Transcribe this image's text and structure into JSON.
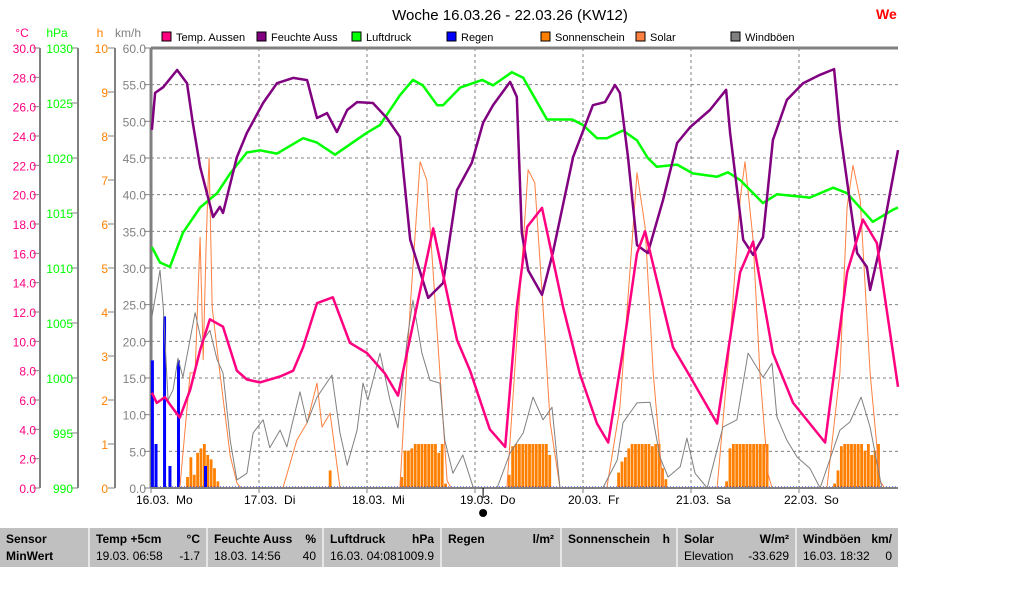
{
  "title": "Woche 16.03.26 - 22.03.26 (KW12)",
  "corner_label": "We",
  "colors": {
    "temp": "#ff0080",
    "humidity": "#800080",
    "pressure": "#00ff00",
    "rain": "#0000ff",
    "sunshine": "#ff8000",
    "solar": "#ff8040",
    "wind": "#808080",
    "grid": "#808080"
  },
  "chart_data": {
    "type": "line",
    "title": "Woche 16.03.26 - 22.03.26 (KW12)",
    "x_unit": "hours since 16.03. 00:00",
    "xlim": [
      0,
      166
    ],
    "grid": true,
    "legend_placement": "top",
    "x_ticks": [
      {
        "hour": 0,
        "label": "16.03.  Mo"
      },
      {
        "hour": 24,
        "label": "17.03.  Di"
      },
      {
        "hour": 48,
        "label": "18.03.  Mi"
      },
      {
        "hour": 72,
        "label": "19.03.  Do"
      },
      {
        "hour": 96,
        "label": "20.03.  Fr"
      },
      {
        "hour": 120,
        "label": "21.03.  Sa"
      },
      {
        "hour": 144,
        "label": "22.03.  So"
      }
    ],
    "now_marker_hour": 73.8,
    "axes": [
      {
        "id": "temp",
        "unit": "°C",
        "range": [
          0,
          30
        ],
        "ticks": [
          "30.0",
          "28.0",
          "26.0",
          "24.0",
          "22.0",
          "20.0",
          "18.0",
          "16.0",
          "14.0",
          "12.0",
          "10.0",
          "8.0",
          "6.0",
          "4.0",
          "2.0",
          "0.0"
        ]
      },
      {
        "id": "pressure",
        "unit": "hPa",
        "range": [
          990,
          1030
        ],
        "ticks": [
          "1030",
          "1025",
          "1020",
          "1015",
          "1010",
          "1005",
          "1000",
          "995",
          "990"
        ]
      },
      {
        "id": "sunshine",
        "unit": "h",
        "range": [
          0,
          10
        ],
        "ticks": [
          "10",
          "9",
          "8",
          "7",
          "6",
          "5",
          "4",
          "3",
          "2",
          "1",
          "0"
        ]
      },
      {
        "id": "wind",
        "unit": "km/h",
        "range": [
          0,
          60
        ],
        "ticks": [
          "60.0",
          "55.0",
          "50.0",
          "45.0",
          "40.0",
          "35.0",
          "30.0",
          "25.0",
          "20.0",
          "15.0",
          "10.0",
          "5.0",
          "0.0"
        ]
      }
    ],
    "legend": [
      "Temp. Aussen",
      "Feuchte Auss",
      "Luftdruck",
      "Regen",
      "Sonnenschein",
      "Solar",
      "Windböen"
    ],
    "series": [
      {
        "name": "Temp. Aussen",
        "key": "temp",
        "axis": "temp",
        "type": "line",
        "x": [
          0.2,
          1.3,
          3.1,
          4.2,
          6.4,
          8.7,
          10.9,
          13.1,
          16,
          19.1,
          21.3,
          24.2,
          28.7,
          31.6,
          33.8,
          36.9,
          40.4,
          44.2,
          48,
          52,
          54.9,
          62.7,
          68,
          70.9,
          75.3,
          78.7,
          81.3,
          83.6,
          86.9,
          91.6,
          95.3,
          99.1,
          101.6,
          104.9,
          108,
          109.8,
          116,
          119.8,
          125.8,
          130.9,
          133.8,
          138.2,
          142.7,
          149.8,
          154.7,
          158.2,
          161.3,
          166
        ],
        "y": [
          6.5,
          5.8,
          6.2,
          5.7,
          4.8,
          6.7,
          9.4,
          11.5,
          11.0,
          8.0,
          7.4,
          7.2,
          7.6,
          8.0,
          9.6,
          12.6,
          13.0,
          9.9,
          9.2,
          7.8,
          6.3,
          17.7,
          10.1,
          8.0,
          4.0,
          2.8,
          12.3,
          17.8,
          19.1,
          12.3,
          7.8,
          4.4,
          3.1,
          9.4,
          16.0,
          17.5,
          9.6,
          7.6,
          4.4,
          14.7,
          16.8,
          9.2,
          5.8,
          3.1,
          14.7,
          18.3,
          16.7,
          6.9
        ]
      },
      {
        "name": "Feuchte Auss",
        "key": "humidity",
        "axis": "percent",
        "range": [
          0,
          100
        ],
        "type": "line",
        "x": [
          0.2,
          0.9,
          2.7,
          5.8,
          8,
          9.3,
          10.9,
          13.8,
          15.3,
          16,
          19.1,
          21.3,
          24.9,
          28,
          31.6,
          34.7,
          36.9,
          39.1,
          41.3,
          43.6,
          45.8,
          49.3,
          52.4,
          55.3,
          57.6,
          61.6,
          64.9,
          68,
          71.3,
          73.8,
          76,
          79.8,
          81.3,
          82.4,
          83.8,
          86.9,
          89.3,
          93.8,
          98.2,
          100.9,
          103.1,
          104.2,
          106,
          108,
          110.4,
          113.8,
          116.9,
          119.8,
          124.2,
          127.8,
          128.7,
          131.6,
          133.8,
          136,
          138.2,
          141.3,
          144.9,
          148.7,
          151.8,
          153.1,
          156.9,
          159.1,
          159.8,
          162,
          166
        ],
        "y": [
          81.4,
          89.8,
          91.1,
          95,
          92,
          83,
          73,
          61.6,
          63.9,
          62.5,
          75.2,
          80.7,
          87.5,
          92,
          93.2,
          92.7,
          84.1,
          85.2,
          80.9,
          85.9,
          87.7,
          87.5,
          84.1,
          79.8,
          56.4,
          43.2,
          46.6,
          67.7,
          73.9,
          83,
          87,
          92.3,
          88.9,
          58,
          49.5,
          43.9,
          53.4,
          75.2,
          87,
          87.7,
          91.6,
          89.8,
          75.2,
          55.2,
          53.4,
          65.5,
          78.4,
          82,
          85.9,
          90.5,
          80.7,
          56.4,
          53,
          57,
          79.1,
          88.2,
          92,
          93.9,
          95.2,
          81.4,
          53.4,
          50.2,
          45,
          54.8,
          76.8
        ]
      },
      {
        "name": "Luftdruck",
        "key": "pressure",
        "axis": "pressure",
        "type": "line",
        "x": [
          0.2,
          2,
          4.2,
          7.1,
          10.9,
          14.7,
          17.6,
          21.3,
          24.2,
          28,
          33.8,
          36.9,
          40.9,
          48,
          50.9,
          55.3,
          58.2,
          60.4,
          63.6,
          64.9,
          68.7,
          73.6,
          76,
          80.2,
          82.7,
          88,
          93.6,
          96,
          99.1,
          101.3,
          104.9,
          108,
          110.4,
          112.4,
          116.9,
          120.4,
          125.8,
          128.2,
          130.9,
          136,
          139.1,
          146.4,
          151.6,
          154.7,
          160.4,
          164.9,
          166
        ],
        "y": [
          1011.9,
          1010.5,
          1010.1,
          1013.2,
          1015.5,
          1016.8,
          1018.6,
          1020.5,
          1020.7,
          1020.4,
          1021.8,
          1021.4,
          1020.3,
          1022.3,
          1023,
          1025.7,
          1027.1,
          1026.6,
          1024.8,
          1024.8,
          1026.4,
          1027.1,
          1026.6,
          1027.8,
          1027.3,
          1023.5,
          1023.5,
          1023,
          1021.8,
          1021.8,
          1022.5,
          1021.6,
          1020,
          1019.2,
          1019.4,
          1018.6,
          1018.3,
          1018.7,
          1018,
          1015.9,
          1016.7,
          1016.4,
          1017.3,
          1016.8,
          1014.2,
          1015.3,
          1015.5
        ]
      },
      {
        "name": "Regen",
        "key": "rain",
        "axis": "sunshine",
        "type": "bar",
        "unit": "l/m²",
        "x": [
          0.2,
          1,
          2.9,
          4.1,
          6,
          12
        ],
        "y": [
          2.9,
          1.0,
          3.9,
          0.5,
          2.9,
          0.5
        ]
      },
      {
        "name": "Sonnenschein",
        "key": "sunshine",
        "axis": "sunshine",
        "type": "bar",
        "step_hours": 0.75,
        "blocks": [
          {
            "start": 7.8,
            "values": [
              0.25,
              0.7,
              0.3,
              0.8,
              0.9,
              1.0,
              0.75,
              0.65,
              0.45,
              0.15
            ]
          },
          {
            "start": 39.5,
            "values": [
              0.4
            ]
          },
          {
            "start": 55.4,
            "values": [
              0.25,
              0.85,
              0.85,
              0.9,
              1,
              1,
              1,
              1,
              1,
              1,
              1,
              0.8,
              1,
              0.1
            ]
          },
          {
            "start": 79.3,
            "values": [
              0.3,
              0.95,
              1,
              1,
              1,
              1,
              1,
              1,
              1,
              1,
              1,
              1,
              0.75
            ]
          },
          {
            "start": 103.6,
            "values": [
              0.35,
              0.6,
              0.7,
              0.9,
              1,
              1,
              1,
              1,
              1,
              1,
              0.95,
              1,
              1,
              0.45,
              0.2
            ]
          },
          {
            "start": 127.6,
            "values": [
              0.15,
              0.9,
              1,
              1,
              1,
              1,
              1,
              1,
              1,
              1,
              1,
              1,
              1
            ]
          },
          {
            "start": 151.6,
            "values": [
              0.1,
              0.4,
              0.95,
              1,
              1,
              1,
              1,
              1,
              1,
              0.85,
              1,
              0.75,
              0.85,
              1
            ]
          }
        ]
      },
      {
        "name": "Solar",
        "key": "solar",
        "axis": "wind",
        "type": "line",
        "x": [
          0,
          6.4,
          8.7,
          9.8,
          10.9,
          11.6,
          12.2,
          12.7,
          12.9,
          13.6,
          15.3,
          17.6,
          19.1,
          20,
          29.3,
          32.4,
          34.7,
          36.9,
          38,
          39.8,
          42,
          55.3,
          57.6,
          59.8,
          61.3,
          62.7,
          64.2,
          65.8,
          66.7,
          79.1,
          81.3,
          83.8,
          85.3,
          87.1,
          88.7,
          90.9,
          101.3,
          104.2,
          106.4,
          108,
          109.8,
          111.6,
          113.8,
          125.8,
          128.7,
          130.9,
          132,
          133.8,
          135.3,
          137.1,
          138,
          150.2,
          153.1,
          154.7,
          156,
          157.6,
          159.8,
          162,
          163,
          166
        ],
        "y": [
          0,
          0,
          15.7,
          15.7,
          34.2,
          17.5,
          32,
          42,
          45,
          24.6,
          15.7,
          4.4,
          0.7,
          0,
          0,
          6.5,
          8.9,
          14.3,
          8.3,
          10.2,
          0,
          0,
          24.7,
          44.5,
          42,
          29.3,
          15.7,
          1,
          0,
          0,
          20.2,
          43.4,
          41.6,
          24.7,
          8.9,
          0,
          0,
          11,
          29.3,
          43,
          35.6,
          15.7,
          0,
          0,
          20.2,
          39.3,
          44.5,
          33.8,
          15.7,
          2,
          0,
          0,
          15.7,
          38.3,
          44,
          39.3,
          15.7,
          1,
          0,
          0
        ]
      },
      {
        "name": "Windböen",
        "key": "wind",
        "axis": "wind",
        "type": "line",
        "x": [
          0.2,
          2,
          2.7,
          3.8,
          4.9,
          6,
          7.1,
          9.8,
          11.3,
          13.1,
          14.7,
          16,
          17.6,
          19.1,
          21.3,
          22.7,
          24.9,
          26.4,
          28.7,
          30.2,
          31.3,
          33.1,
          34.7,
          36.9,
          40.2,
          42,
          43.6,
          45.8,
          47.1,
          48.2,
          50.9,
          53.1,
          54.9,
          56.9,
          58.2,
          60.2,
          62,
          64.2,
          65.3,
          67.1,
          69.3,
          71.6,
          76.9,
          79.8,
          82.7,
          84.9,
          87.1,
          89.1,
          90.9,
          100.4,
          103.6,
          104.9,
          108,
          110.9,
          113.1,
          114.9,
          117.6,
          119.1,
          120.9,
          123.6,
          127.1,
          130.2,
          132.7,
          136,
          138,
          139.1,
          141.3,
          143.6,
          146.4,
          148.7,
          153.1,
          155.3,
          157.8,
          159.8,
          162.4,
          166
        ],
        "y": [
          23.3,
          29.7,
          24.7,
          12,
          13.4,
          17.7,
          15.1,
          23.9,
          19.8,
          21.5,
          17.5,
          15.7,
          6.5,
          1.1,
          2,
          7.5,
          9.3,
          5.5,
          7.9,
          5.6,
          8.6,
          13.1,
          8.9,
          12.4,
          15.4,
          7.5,
          3.1,
          7.9,
          14.3,
          12,
          18.4,
          12,
          8.2,
          20.2,
          25.6,
          18.4,
          14.7,
          14.3,
          6.5,
          2,
          4.5,
          0.1,
          0,
          4.8,
          7.5,
          12.4,
          9.3,
          11,
          0,
          0,
          3.8,
          8.9,
          11.6,
          11.7,
          4.2,
          1.5,
          2.9,
          6.8,
          2,
          0,
          8.3,
          9.3,
          18.4,
          15.1,
          17,
          9.7,
          6.5,
          4.2,
          2.7,
          0,
          7.9,
          9,
          12.4,
          8.3,
          0,
          0
        ]
      }
    ]
  },
  "stats": {
    "columns": [
      {
        "name": "Sensor",
        "unit": "",
        "row2_left": "MinWert",
        "row2_right": ""
      },
      {
        "name": "Temp +5cm",
        "unit": "°C",
        "row2_left": "19.03.  06:58",
        "row2_right": "-1.7"
      },
      {
        "name": "Feuchte Auss",
        "unit": "%",
        "row2_left": "18.03.  14:56",
        "row2_right": "40"
      },
      {
        "name": "Luftdruck",
        "unit": "hPa",
        "row2_left": "16.03.  04:08",
        "row2_right": "1009.9"
      },
      {
        "name": "Regen",
        "unit": "l/m²",
        "row2_left": "",
        "row2_right": ""
      },
      {
        "name": "Sonnenschein",
        "unit": "h",
        "row2_left": "",
        "row2_right": ""
      },
      {
        "name": "Solar",
        "unit": "W/m²",
        "row2_left": "Elevation",
        "row2_right": "-33.629"
      },
      {
        "name": "Windböen",
        "unit": "km/",
        "row2_left": "16.03.  18:32",
        "row2_right": "0"
      }
    ]
  }
}
